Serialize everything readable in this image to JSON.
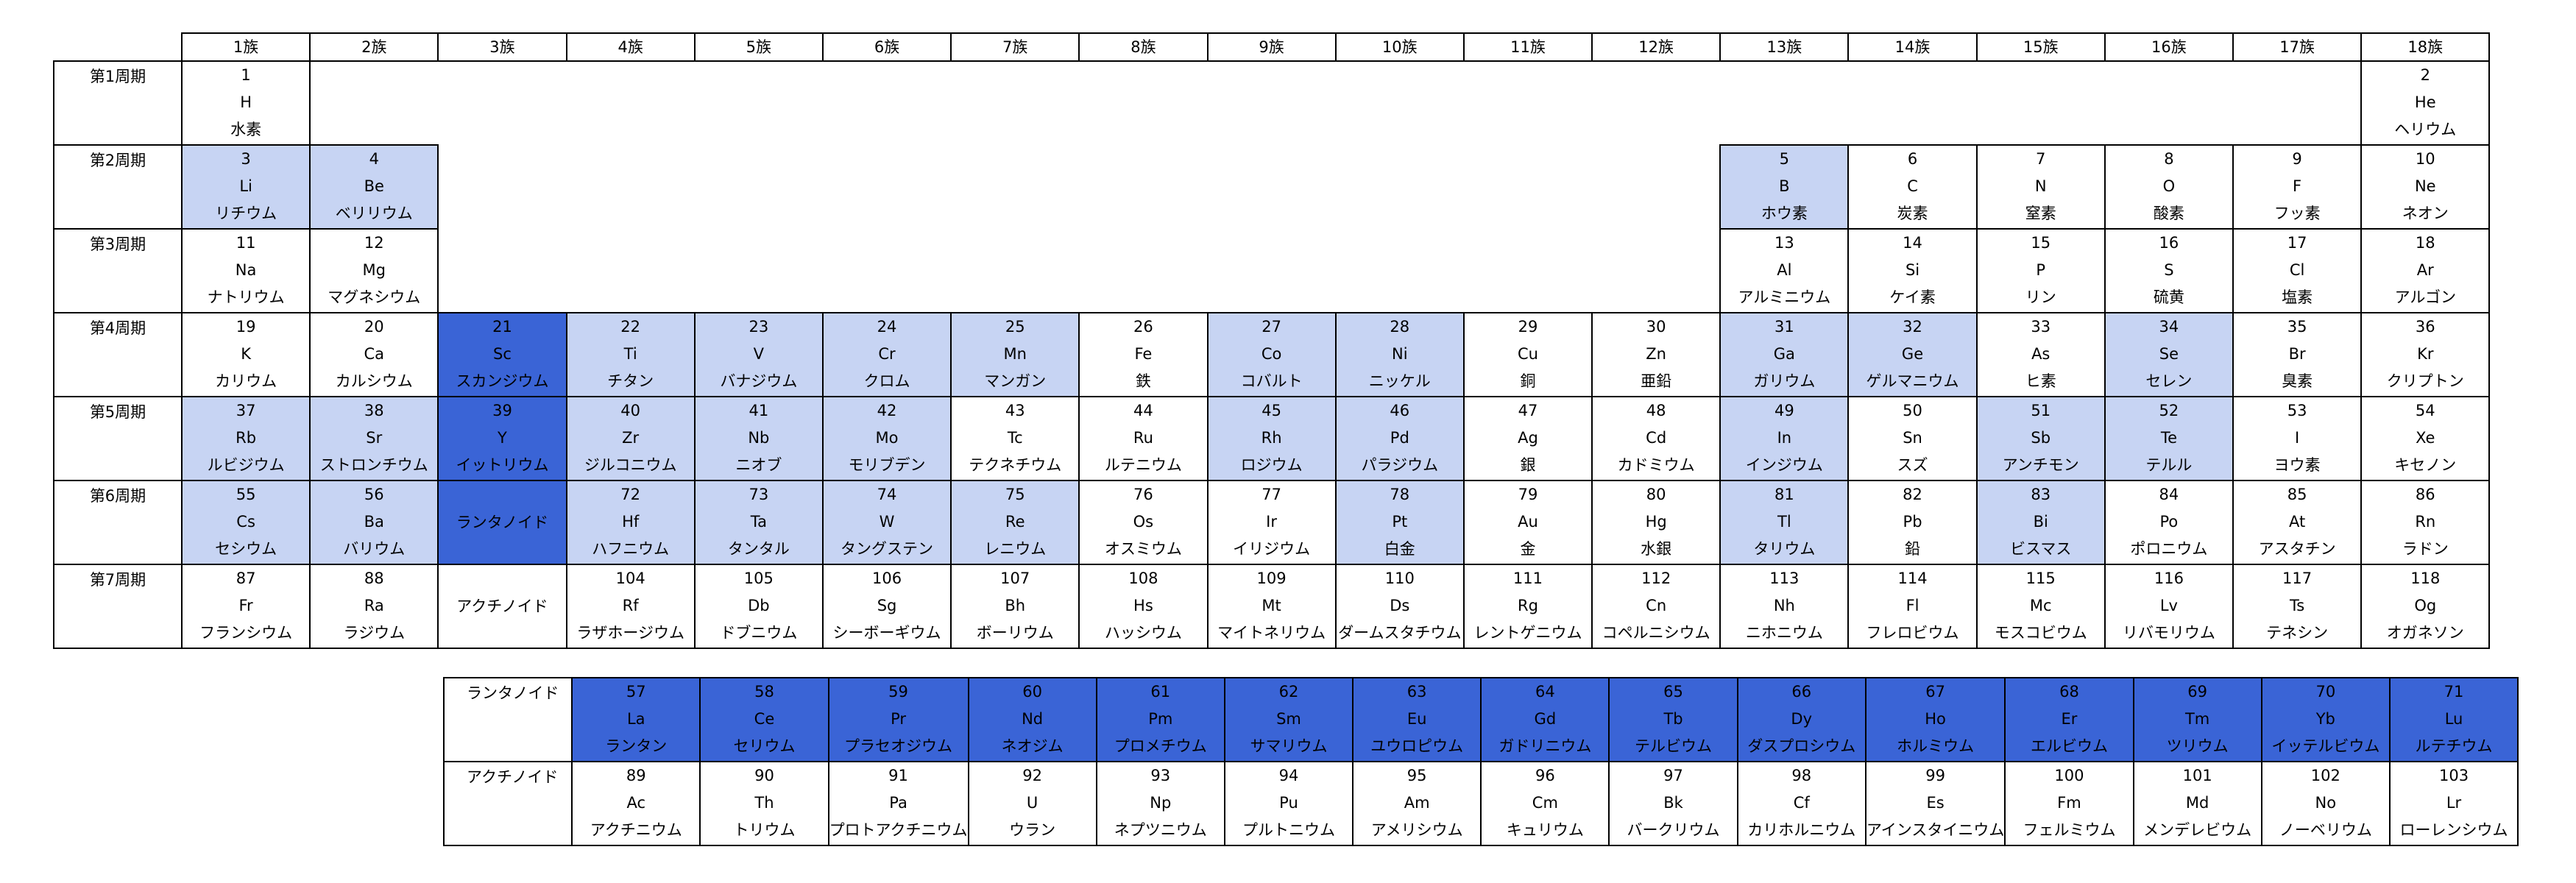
{
  "groups": [
    "1族",
    "2族",
    "3族",
    "4族",
    "5族",
    "6族",
    "7族",
    "8族",
    "9族",
    "10族",
    "11族",
    "12族",
    "13族",
    "14族",
    "15族",
    "16族",
    "17族",
    "18族"
  ],
  "periods": [
    "第1周期",
    "第2周期",
    "第3周期",
    "第4周期",
    "第5周期",
    "第6周期",
    "第7周期"
  ],
  "cells": {
    "1-1": {
      "num": "1",
      "sym": "H",
      "name": "水素"
    },
    "1-18": {
      "num": "2",
      "sym": "He",
      "name": "ヘリウム"
    },
    "2-1": {
      "num": "3",
      "sym": "Li",
      "name": "リチウム"
    },
    "2-2": {
      "num": "4",
      "sym": "Be",
      "name": "ベリリウム"
    },
    "2-13": {
      "num": "5",
      "sym": "B",
      "name": "ホウ素"
    },
    "2-14": {
      "num": "6",
      "sym": "C",
      "name": "炭素"
    },
    "2-15": {
      "num": "7",
      "sym": "N",
      "name": "窒素"
    },
    "2-16": {
      "num": "8",
      "sym": "O",
      "name": "酸素"
    },
    "2-17": {
      "num": "9",
      "sym": "F",
      "name": "フッ素"
    },
    "2-18": {
      "num": "10",
      "sym": "Ne",
      "name": "ネオン"
    },
    "3-1": {
      "num": "11",
      "sym": "Na",
      "name": "ナトリウム"
    },
    "3-2": {
      "num": "12",
      "sym": "Mg",
      "name": "マグネシウム"
    },
    "3-13": {
      "num": "13",
      "sym": "Al",
      "name": "アルミニウム"
    },
    "3-14": {
      "num": "14",
      "sym": "Si",
      "name": "ケイ素"
    },
    "3-15": {
      "num": "15",
      "sym": "P",
      "name": "リン"
    },
    "3-16": {
      "num": "16",
      "sym": "S",
      "name": "硫黄"
    },
    "3-17": {
      "num": "17",
      "sym": "Cl",
      "name": "塩素"
    },
    "3-18": {
      "num": "18",
      "sym": "Ar",
      "name": "アルゴン"
    },
    "4-1": {
      "num": "19",
      "sym": "K",
      "name": "カリウム"
    },
    "4-2": {
      "num": "20",
      "sym": "Ca",
      "name": "カルシウム"
    },
    "4-3": {
      "num": "21",
      "sym": "Sc",
      "name": "スカンジウム"
    },
    "4-4": {
      "num": "22",
      "sym": "Ti",
      "name": "チタン"
    },
    "4-5": {
      "num": "23",
      "sym": "V",
      "name": "バナジウム"
    },
    "4-6": {
      "num": "24",
      "sym": "Cr",
      "name": "クロム"
    },
    "4-7": {
      "num": "25",
      "sym": "Mn",
      "name": "マンガン"
    },
    "4-8": {
      "num": "26",
      "sym": "Fe",
      "name": "鉄"
    },
    "4-9": {
      "num": "27",
      "sym": "Co",
      "name": "コバルト"
    },
    "4-10": {
      "num": "28",
      "sym": "Ni",
      "name": "ニッケル"
    },
    "4-11": {
      "num": "29",
      "sym": "Cu",
      "name": "銅"
    },
    "4-12": {
      "num": "30",
      "sym": "Zn",
      "name": "亜鉛"
    },
    "4-13": {
      "num": "31",
      "sym": "Ga",
      "name": "ガリウム"
    },
    "4-14": {
      "num": "32",
      "sym": "Ge",
      "name": "ゲルマニウム"
    },
    "4-15": {
      "num": "33",
      "sym": "As",
      "name": "ヒ素"
    },
    "4-16": {
      "num": "34",
      "sym": "Se",
      "name": "セレン"
    },
    "4-17": {
      "num": "35",
      "sym": "Br",
      "name": "臭素"
    },
    "4-18": {
      "num": "36",
      "sym": "Kr",
      "name": "クリプトン"
    },
    "5-1": {
      "num": "37",
      "sym": "Rb",
      "name": "ルビジウム"
    },
    "5-2": {
      "num": "38",
      "sym": "Sr",
      "name": "ストロンチウム"
    },
    "5-3": {
      "num": "39",
      "sym": "Y",
      "name": "イットリウム"
    },
    "5-4": {
      "num": "40",
      "sym": "Zr",
      "name": "ジルコニウム"
    },
    "5-5": {
      "num": "41",
      "sym": "Nb",
      "name": "ニオブ"
    },
    "5-6": {
      "num": "42",
      "sym": "Mo",
      "name": "モリブデン"
    },
    "5-7": {
      "num": "43",
      "sym": "Tc",
      "name": "テクネチウム"
    },
    "5-8": {
      "num": "44",
      "sym": "Ru",
      "name": "ルテニウム"
    },
    "5-9": {
      "num": "45",
      "sym": "Rh",
      "name": "ロジウム"
    },
    "5-10": {
      "num": "46",
      "sym": "Pd",
      "name": "パラジウム"
    },
    "5-11": {
      "num": "47",
      "sym": "Ag",
      "name": "銀"
    },
    "5-12": {
      "num": "48",
      "sym": "Cd",
      "name": "カドミウム"
    },
    "5-13": {
      "num": "49",
      "sym": "In",
      "name": "インジウム"
    },
    "5-14": {
      "num": "50",
      "sym": "Sn",
      "name": "スズ"
    },
    "5-15": {
      "num": "51",
      "sym": "Sb",
      "name": "アンチモン"
    },
    "5-16": {
      "num": "52",
      "sym": "Te",
      "name": "テルル"
    },
    "5-17": {
      "num": "53",
      "sym": "I",
      "name": "ヨウ素"
    },
    "5-18": {
      "num": "54",
      "sym": "Xe",
      "name": "キセノン"
    },
    "6-1": {
      "num": "55",
      "sym": "Cs",
      "name": "セシウム"
    },
    "6-2": {
      "num": "56",
      "sym": "Ba",
      "name": "バリウム"
    },
    "6-4": {
      "num": "72",
      "sym": "Hf",
      "name": "ハフニウム"
    },
    "6-5": {
      "num": "73",
      "sym": "Ta",
      "name": "タンタル"
    },
    "6-6": {
      "num": "74",
      "sym": "W",
      "name": "タングステン"
    },
    "6-7": {
      "num": "75",
      "sym": "Re",
      "name": "レニウム"
    },
    "6-8": {
      "num": "76",
      "sym": "Os",
      "name": "オスミウム"
    },
    "6-9": {
      "num": "77",
      "sym": "Ir",
      "name": "イリジウム"
    },
    "6-10": {
      "num": "78",
      "sym": "Pt",
      "name": "白金"
    },
    "6-11": {
      "num": "79",
      "sym": "Au",
      "name": "金"
    },
    "6-12": {
      "num": "80",
      "sym": "Hg",
      "name": "水銀"
    },
    "6-13": {
      "num": "81",
      "sym": "Tl",
      "name": "タリウム"
    },
    "6-14": {
      "num": "82",
      "sym": "Pb",
      "name": "鉛"
    },
    "6-15": {
      "num": "83",
      "sym": "Bi",
      "name": "ビスマス"
    },
    "6-16": {
      "num": "84",
      "sym": "Po",
      "name": "ポロニウム"
    },
    "6-17": {
      "num": "85",
      "sym": "At",
      "name": "アスタチン"
    },
    "6-18": {
      "num": "86",
      "sym": "Rn",
      "name": "ラドン"
    },
    "7-1": {
      "num": "87",
      "sym": "Fr",
      "name": "フランシウム"
    },
    "7-2": {
      "num": "88",
      "sym": "Ra",
      "name": "ラジウム"
    },
    "7-4": {
      "num": "104",
      "sym": "Rf",
      "name": "ラザホージウム"
    },
    "7-5": {
      "num": "105",
      "sym": "Db",
      "name": "ドブニウム"
    },
    "7-6": {
      "num": "106",
      "sym": "Sg",
      "name": "シーボーギウム"
    },
    "7-7": {
      "num": "107",
      "sym": "Bh",
      "name": "ボーリウム"
    },
    "7-8": {
      "num": "108",
      "sym": "Hs",
      "name": "ハッシウム"
    },
    "7-9": {
      "num": "109",
      "sym": "Mt",
      "name": "マイトネリウム"
    },
    "7-10": {
      "num": "110",
      "sym": "Ds",
      "name": "ダームスタチウム"
    },
    "7-11": {
      "num": "111",
      "sym": "Rg",
      "name": "レントゲニウム"
    },
    "7-12": {
      "num": "112",
      "sym": "Cn",
      "name": "コペルニシウム"
    },
    "7-13": {
      "num": "113",
      "sym": "Nh",
      "name": "ニホニウム"
    },
    "7-14": {
      "num": "114",
      "sym": "Fl",
      "name": "フレロビウム"
    },
    "7-15": {
      "num": "115",
      "sym": "Mc",
      "name": "モスコビウム"
    },
    "7-16": {
      "num": "116",
      "sym": "Lv",
      "name": "リバモリウム"
    },
    "7-17": {
      "num": "117",
      "sym": "Ts",
      "name": "テネシン"
    },
    "7-18": {
      "num": "118",
      "sym": "Og",
      "name": "オガネソン"
    }
  },
  "labels": {
    "lanthanoid": "ランタノイド",
    "actinoid": "アクチノイド"
  },
  "lanthanoids": [
    {
      "num": "57",
      "sym": "La",
      "name": "ランタン"
    },
    {
      "num": "58",
      "sym": "Ce",
      "name": "セリウム"
    },
    {
      "num": "59",
      "sym": "Pr",
      "name": "プラセオジウム"
    },
    {
      "num": "60",
      "sym": "Nd",
      "name": "ネオジム"
    },
    {
      "num": "61",
      "sym": "Pm",
      "name": "プロメチウム"
    },
    {
      "num": "62",
      "sym": "Sm",
      "name": "サマリウム"
    },
    {
      "num": "63",
      "sym": "Eu",
      "name": "ユウロピウム"
    },
    {
      "num": "64",
      "sym": "Gd",
      "name": "ガドリニウム"
    },
    {
      "num": "65",
      "sym": "Tb",
      "name": "テルビウム"
    },
    {
      "num": "66",
      "sym": "Dy",
      "name": "ダスプロシウム"
    },
    {
      "num": "67",
      "sym": "Ho",
      "name": "ホルミウム"
    },
    {
      "num": "68",
      "sym": "Er",
      "name": "エルビウム"
    },
    {
      "num": "69",
      "sym": "Tm",
      "name": "ツリウム"
    },
    {
      "num": "70",
      "sym": "Yb",
      "name": "イッテルビウム"
    },
    {
      "num": "71",
      "sym": "Lu",
      "name": "ルテチウム"
    }
  ],
  "actinoids": [
    {
      "num": "89",
      "sym": "Ac",
      "name": "アクチニウム"
    },
    {
      "num": "90",
      "sym": "Th",
      "name": "トリウム"
    },
    {
      "num": "91",
      "sym": "Pa",
      "name": "プロトアクチニウム"
    },
    {
      "num": "92",
      "sym": "U",
      "name": "ウラン"
    },
    {
      "num": "93",
      "sym": "Np",
      "name": "ネプツニウム"
    },
    {
      "num": "94",
      "sym": "Pu",
      "name": "プルトニウム"
    },
    {
      "num": "95",
      "sym": "Am",
      "name": "アメリシウム"
    },
    {
      "num": "96",
      "sym": "Cm",
      "name": "キュリウム"
    },
    {
      "num": "97",
      "sym": "Bk",
      "name": "バークリウム"
    },
    {
      "num": "98",
      "sym": "Cf",
      "name": "カリホルニウム"
    },
    {
      "num": "99",
      "sym": "Es",
      "name": "アインスタイニウム"
    },
    {
      "num": "100",
      "sym": "Fm",
      "name": "フェルミウム"
    },
    {
      "num": "101",
      "sym": "Md",
      "name": "メンデレビウム"
    },
    {
      "num": "102",
      "sym": "No",
      "name": "ノーベリウム"
    },
    {
      "num": "103",
      "sym": "Lr",
      "name": "ローレンシウム"
    }
  ],
  "highlight": {
    "light": [
      "2-1",
      "2-2",
      "2-13",
      "4-4",
      "4-5",
      "4-6",
      "4-7",
      "4-9",
      "4-10",
      "4-13",
      "4-14",
      "4-16",
      "5-1",
      "5-2",
      "5-4",
      "5-5",
      "5-6",
      "5-9",
      "5-10",
      "5-13",
      "5-15",
      "5-16",
      "6-1",
      "6-2",
      "6-4",
      "6-5",
      "6-6",
      "6-7",
      "6-10",
      "6-13",
      "6-15"
    ],
    "dark": [
      "4-3",
      "5-3",
      "6-3"
    ],
    "light_color": "#c7d4f3",
    "dark_color": "#3a64d6"
  }
}
